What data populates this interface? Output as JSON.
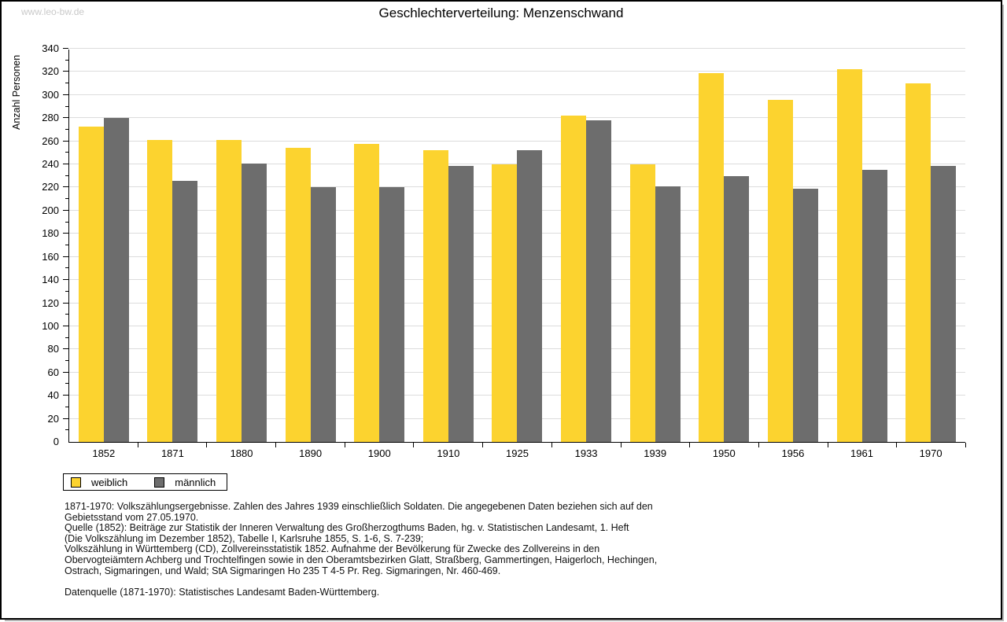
{
  "watermark": "www.leo-bw.de",
  "title": "Geschlechterverteilung: Menzenschwand",
  "chart_data": {
    "type": "bar",
    "title": "Geschlechterverteilung: Menzenschwand",
    "xlabel": "",
    "ylabel": "Anzahl Personen",
    "ylim": [
      0,
      340
    ],
    "ytick_major": 20,
    "ytick_minor": 10,
    "grid": true,
    "legend_position": "bottom-left",
    "categories": [
      "1852",
      "1871",
      "1880",
      "1890",
      "1900",
      "1910",
      "1925",
      "1933",
      "1939",
      "1950",
      "1956",
      "1961",
      "1970"
    ],
    "series": [
      {
        "name": "weiblich",
        "color": "#FCD32F",
        "values": [
          273,
          261,
          261,
          254,
          258,
          252,
          240,
          282,
          240,
          319,
          296,
          322,
          310
        ]
      },
      {
        "name": "männlich",
        "color": "#6D6D6D",
        "values": [
          280,
          226,
          241,
          220,
          220,
          239,
          252,
          278,
          221,
          230,
          219,
          235,
          239
        ]
      }
    ]
  },
  "colors": {
    "grid": "#DCDCDC",
    "axis": "#000000",
    "watermark": "#C9C9C9"
  },
  "footnotes": {
    "lines": [
      "1871-1970: Volkszählungsergebnisse. Zahlen des Jahres 1939 einschließlich Soldaten. Die angegebenen Daten beziehen sich auf den",
      "Gebietsstand vom 27.05.1970.",
      "Quelle (1852): Beiträge zur Statistik der Inneren Verwaltung des Großherzogthums Baden, hg. v. Statistischen Landesamt, 1. Heft",
      "(Die Volkszählung im Dezember 1852), Tabelle I, Karlsruhe 1855, S. 1-6, S. 7-239;",
      "Volkszählung in Württemberg (CD), Zollvereinsstatistik 1852. Aufnahme der Bevölkerung für Zwecke des Zollvereins in den",
      "Obervogteiämtern Achberg und Trochtelfingen sowie in den Oberamtsbezirken Glatt, Straßberg, Gammertingen, Haigerloch, Hechingen,",
      "Ostrach, Sigmaringen, und Wald; StA Sigmaringen Ho 235 T 4-5 Pr. Reg. Sigmaringen, Nr. 460-469."
    ],
    "datasource": "Datenquelle (1871-1970): Statistisches Landesamt Baden-Württemberg."
  }
}
